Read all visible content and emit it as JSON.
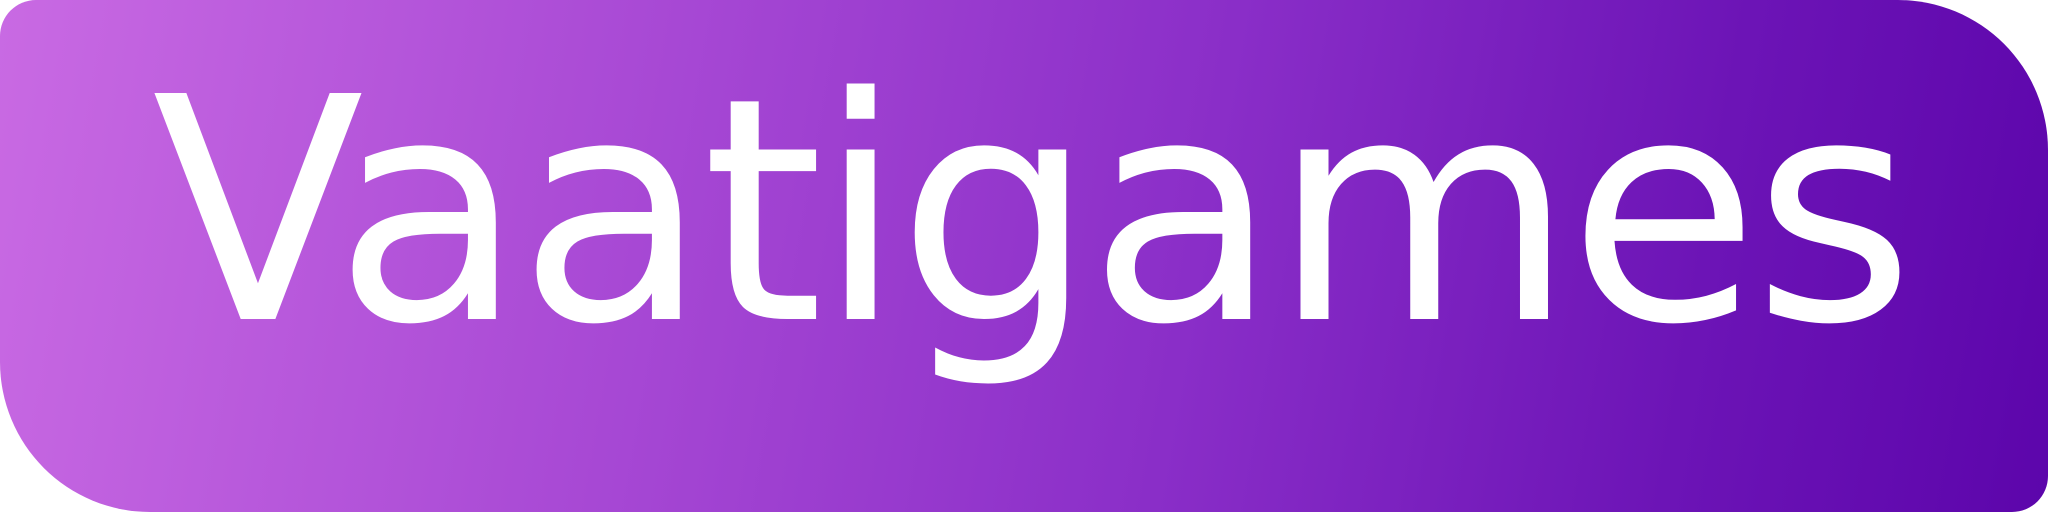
{
  "brand": {
    "name": "Vaatigames",
    "colors": {
      "gradient_start": "#c96ae3",
      "gradient_end": "#5c05ab",
      "text": "#ffffff"
    }
  }
}
